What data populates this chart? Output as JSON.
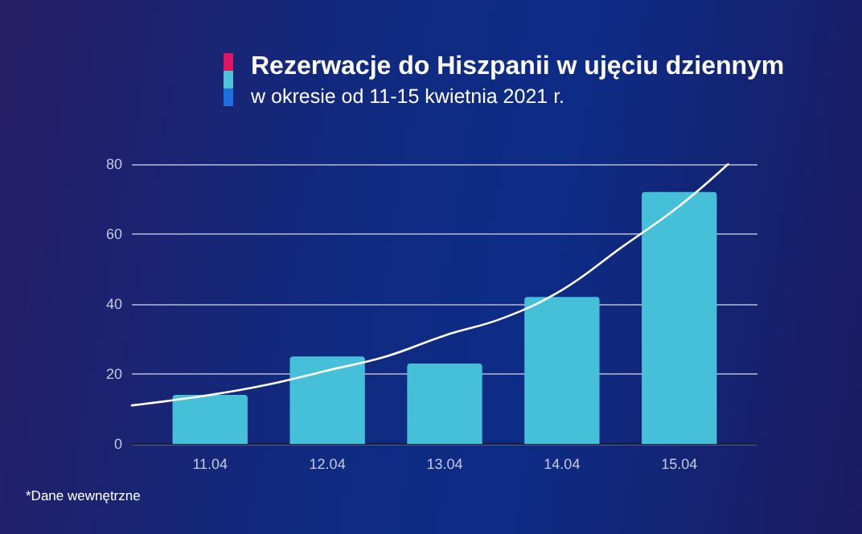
{
  "chart_data": {
    "type": "bar",
    "title": "Rezerwacje do Hiszpanii w ujęciu dziennym",
    "subtitle": "w okresie od 11-15 kwietnia 2021 r.",
    "x": [
      "2021-04-11",
      "2021-04-12",
      "2021-04-13",
      "2021-04-14",
      "2021-04-15"
    ],
    "series": [
      {
        "color": "#46bfd8",
        "values": [
          14,
          25,
          23,
          42,
          72
        ]
      },
      {
        "type": "line",
        "color": "#ffffff",
        "x": [
          "2021-04-10T08:00",
          "2021-04-11",
          "2021-04-11T12:00",
          "2021-04-12",
          "2021-04-12T12:00",
          "2021-04-13",
          "2021-04-13T12:00",
          "2021-04-14",
          "2021-04-14T12:00",
          "2021-04-15",
          "2021-04-15T10:00"
        ],
        "values": [
          11,
          14,
          17,
          21,
          25,
          31,
          36,
          44,
          56,
          68,
          80
        ]
      }
    ],
    "xlim": [
      "2021-04-10T08:00",
      "2021-04-15T16:00"
    ],
    "xticks": [
      {
        "value": "2021-04-11",
        "label": "11.04"
      },
      {
        "value": "2021-04-12",
        "label": "12.04"
      },
      {
        "value": "2021-04-13",
        "label": "13.04"
      },
      {
        "value": "2021-04-14",
        "label": "14.04"
      },
      {
        "value": "2021-04-15",
        "label": "15.04"
      }
    ],
    "ylim": [
      0,
      80
    ],
    "yticks": [
      0,
      20,
      40,
      60,
      80
    ],
    "grid": "y",
    "marker": "none",
    "line_style": "solid",
    "annotations": [
      "*Dane wewnętrzne"
    ]
  }
}
